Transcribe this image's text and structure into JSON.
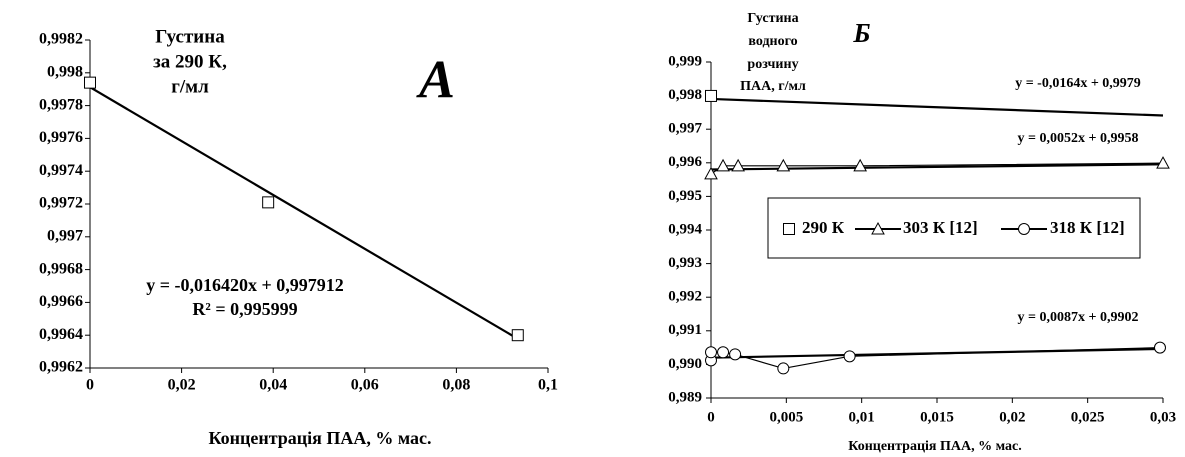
{
  "chart_data": [
    {
      "type": "scatter",
      "title": [
        "Густина",
        "за 290 К,",
        "г/мл"
      ],
      "panel_label": "А",
      "x_label": "Концентрація ПАА, % мас.",
      "annotations": [
        "y = -0,016420x + 0,997912",
        "R² = 0,995999"
      ],
      "xlim": [
        0,
        0.1
      ],
      "xticks": [
        0,
        {
          "value": 0.02,
          "label": "0,02"
        },
        {
          "value": 0.04,
          "label": "0,04"
        },
        {
          "value": 0.06,
          "label": "0,06"
        },
        {
          "value": 0.08,
          "label": "0,08"
        },
        {
          "value": 0.1,
          "label": "0,1"
        }
      ],
      "ylim": [
        0.9962,
        0.9982
      ],
      "yticks": [
        {
          "value": 0.9962,
          "label": "0,9962"
        },
        {
          "value": 0.9964,
          "label": "0,9964"
        },
        {
          "value": 0.9966,
          "label": "0,9966"
        },
        {
          "value": 0.9968,
          "label": "0,9968"
        },
        {
          "value": 0.997,
          "label": "0,997"
        },
        {
          "value": 0.9972,
          "label": "0,9972"
        },
        {
          "value": 0.9974,
          "label": "0,9974"
        },
        {
          "value": 0.9976,
          "label": "0,9976"
        },
        {
          "value": 0.9978,
          "label": "0,9978"
        },
        {
          "value": 0.998,
          "label": "0,998"
        },
        {
          "value": 0.9982,
          "label": "0,9982"
        }
      ],
      "series": [
        {
          "marker": "square",
          "line": false,
          "color": "#000000",
          "x": [
            0,
            0.0389,
            0.0934
          ],
          "values": [
            0.99794,
            0.99721,
            0.9964
          ]
        }
      ],
      "trendlines": [
        {
          "x": [
            0,
            0.0934
          ],
          "values": [
            0.997912,
            0.996378
          ]
        }
      ]
    },
    {
      "type": "scatter",
      "title": [
        "Густина",
        "водного",
        "розчину",
        "ПАА, г/мл"
      ],
      "panel_label": "Б",
      "x_label": "Концентрація ПАА, % мас.",
      "annotations": [
        "y = -0,0164x + 0,9979",
        "y = 0,0052x + 0,9958",
        "y = 0,0087x + 0,9902"
      ],
      "xlim": [
        0,
        0.03
      ],
      "xticks": [
        0,
        {
          "value": 0.005,
          "label": "0,005"
        },
        {
          "value": 0.01,
          "label": "0,01"
        },
        {
          "value": 0.015,
          "label": "0,015"
        },
        {
          "value": 0.02,
          "label": "0,02"
        },
        {
          "value": 0.025,
          "label": "0,025"
        },
        {
          "value": 0.03,
          "label": "0,03"
        }
      ],
      "ylim": [
        0.989,
        0.999
      ],
      "yticks": [
        {
          "value": 0.989,
          "label": "0,989"
        },
        {
          "value": 0.99,
          "label": "0,990"
        },
        {
          "value": 0.991,
          "label": "0,991"
        },
        {
          "value": 0.992,
          "label": "0,992"
        },
        {
          "value": 0.993,
          "label": "0,993"
        },
        {
          "value": 0.994,
          "label": "0,994"
        },
        {
          "value": 0.995,
          "label": "0,995"
        },
        {
          "value": 0.996,
          "label": "0,996"
        },
        {
          "value": 0.997,
          "label": "0,997"
        },
        {
          "value": 0.998,
          "label": "0,998"
        },
        {
          "value": 0.999,
          "label": "0,999"
        }
      ],
      "series": [
        {
          "name": "290 К",
          "marker": "square",
          "line": false,
          "color": "#000000",
          "x": [
            0
          ],
          "values": [
            0.99799
          ]
        },
        {
          "name": "303 К [12]",
          "marker": "triangle",
          "line": true,
          "color": "#000000",
          "x": [
            0,
            0.0008,
            0.0018,
            0.0048,
            0.0099,
            0.03
          ],
          "values": [
            0.99567,
            0.99591,
            0.99591,
            0.99591,
            0.99591,
            0.99599
          ]
        },
        {
          "name": "318 К [12]",
          "marker": "circle",
          "line": true,
          "color": "#000000",
          "x": [
            0,
            0,
            0.0008,
            0.0016,
            0.0048,
            0.0092,
            0.0298
          ],
          "values": [
            0.99012,
            0.99036,
            0.99036,
            0.9903,
            0.98988,
            0.99024,
            0.9905
          ]
        }
      ],
      "trendlines": [
        {
          "x": [
            0,
            0.03
          ],
          "values": [
            0.9979,
            0.997408
          ]
        },
        {
          "x": [
            0,
            0.03
          ],
          "values": [
            0.9958,
            0.995956
          ]
        },
        {
          "x": [
            0,
            0.03
          ],
          "values": [
            0.9902,
            0.990461
          ]
        }
      ]
    }
  ]
}
